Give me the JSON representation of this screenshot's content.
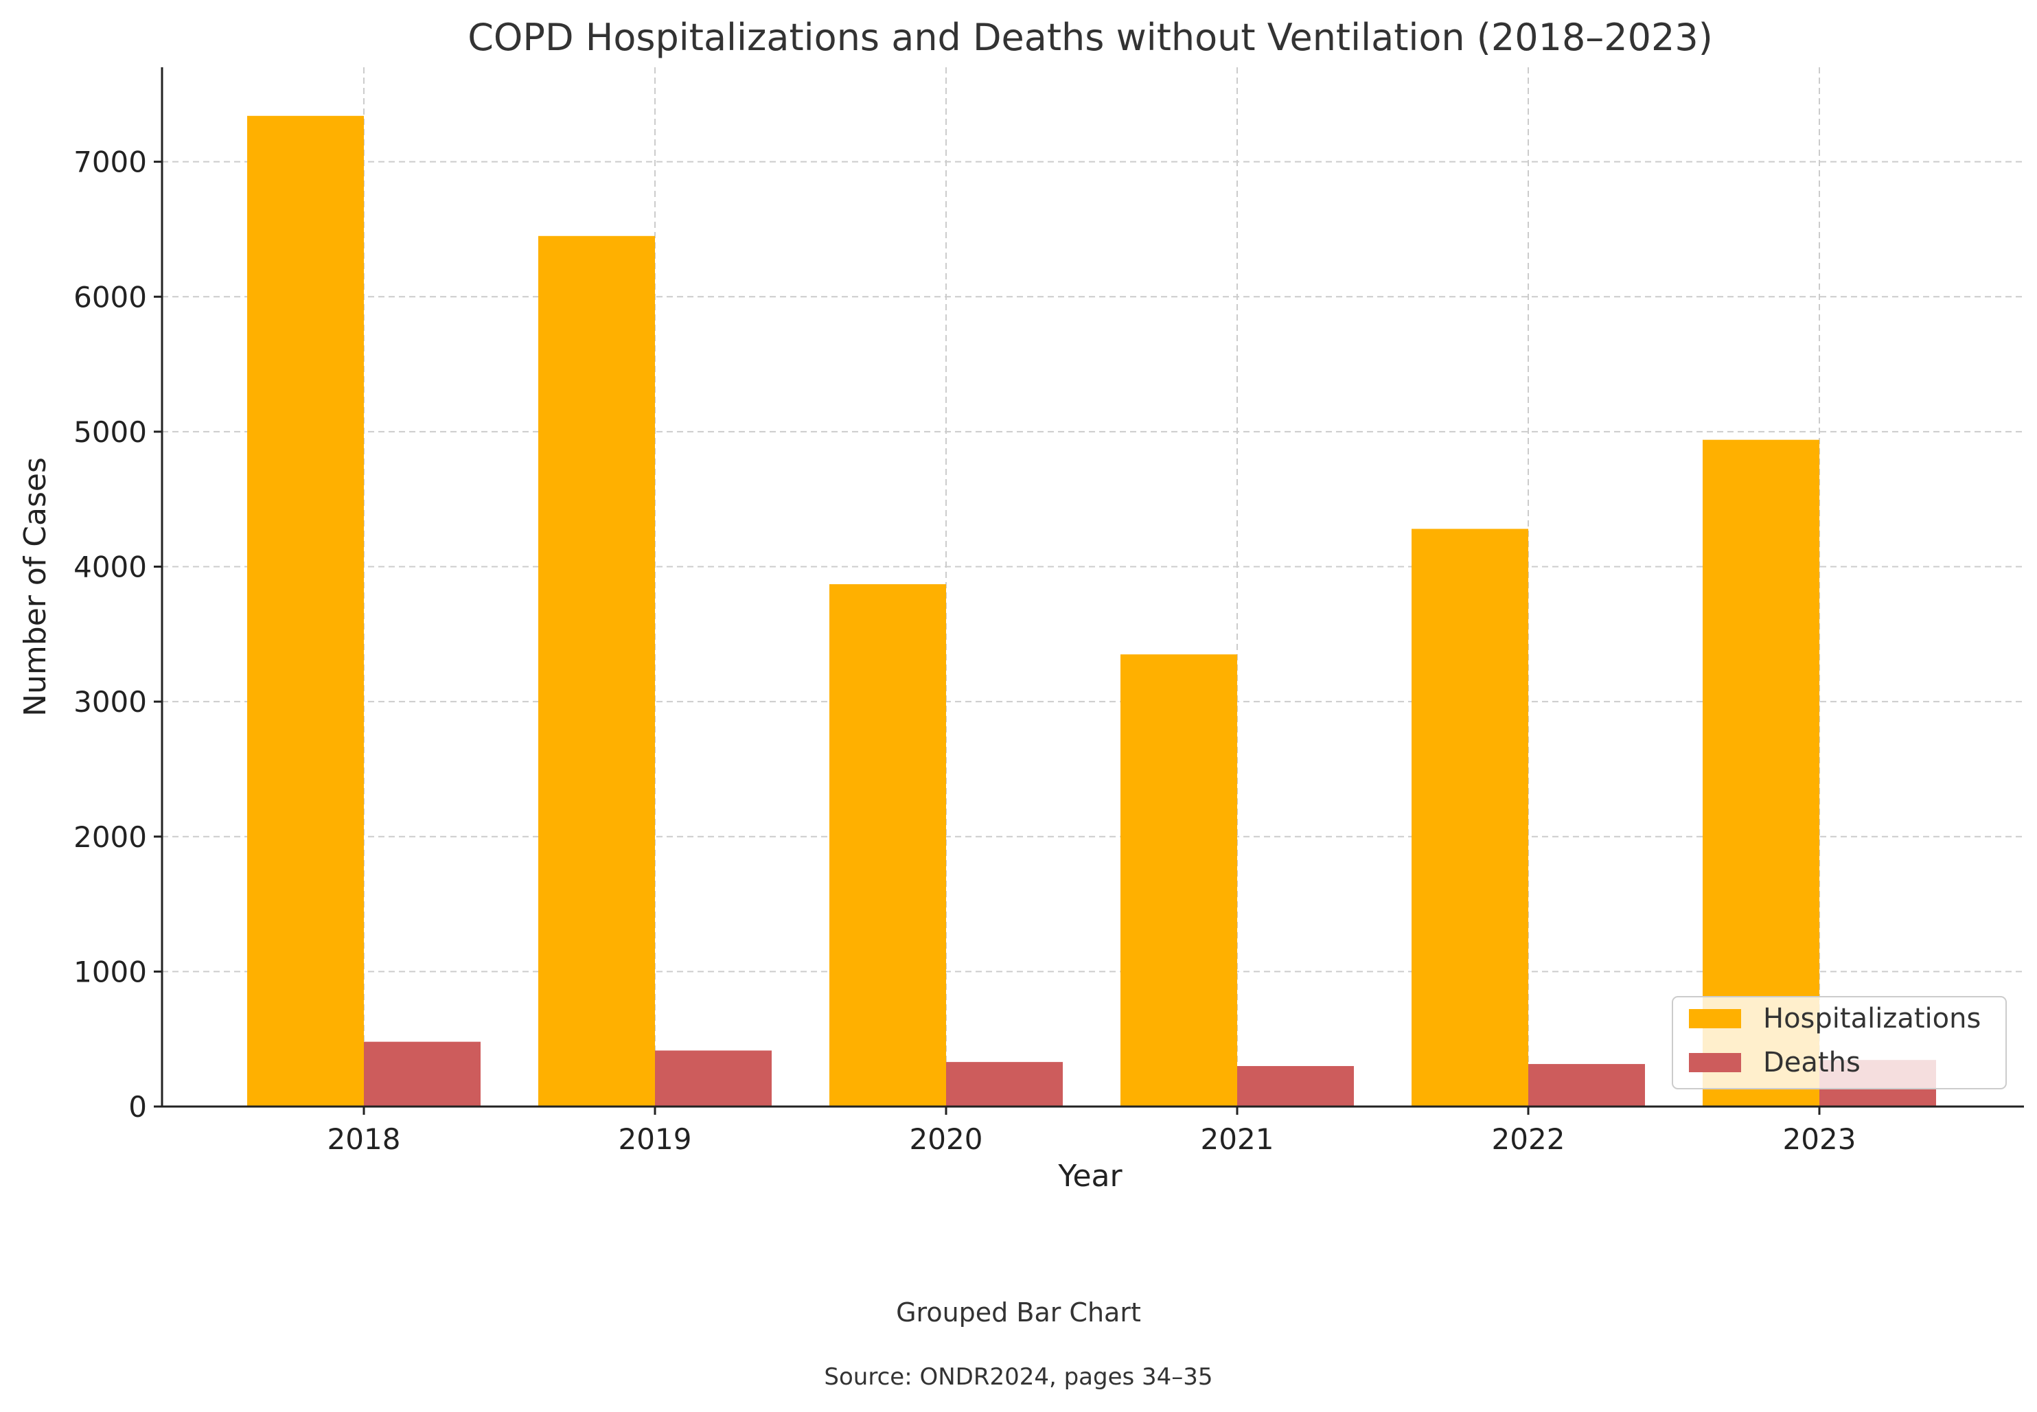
{
  "chart_data": {
    "type": "bar",
    "title": "COPD Hospitalizations and Deaths without Ventilation (2018–2023)",
    "xlabel": "Year",
    "ylabel": "Number of Cases",
    "categories": [
      "2018",
      "2019",
      "2020",
      "2021",
      "2022",
      "2023"
    ],
    "series": [
      {
        "name": "Hospitalizations",
        "color": "#ffb000",
        "values": [
          7340,
          6450,
          3870,
          3350,
          4280,
          4940
        ]
      },
      {
        "name": "Deaths",
        "color": "#cd5c5c",
        "values": [
          480,
          415,
          330,
          300,
          315,
          345
        ]
      }
    ],
    "ylim": [
      0,
      7700
    ],
    "yticks": [
      0,
      1000,
      2000,
      3000,
      4000,
      5000,
      6000,
      7000
    ],
    "grid": true,
    "legend_position": "lower-right"
  },
  "captions": {
    "chart_type": "Grouped Bar Chart",
    "source": "Source: ONDR2024, pages 34–35"
  }
}
